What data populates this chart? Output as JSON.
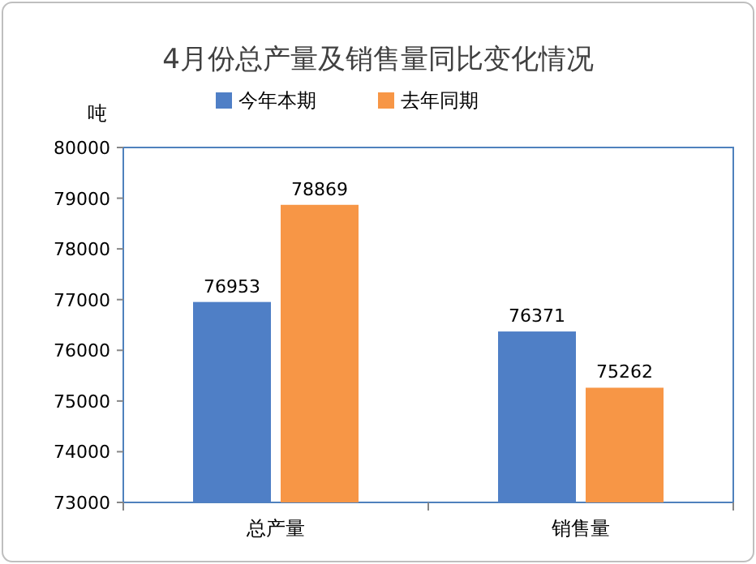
{
  "chart_data": {
    "type": "bar",
    "title": "4月份总产量及销售量同比变化情况",
    "ylabel": "吨",
    "categories": [
      "总产量",
      "销售量"
    ],
    "series": [
      {
        "name": "今年本期",
        "color": "#4f7fc6",
        "values": [
          76953,
          76371
        ]
      },
      {
        "name": "去年同期",
        "color": "#f79646",
        "values": [
          78869,
          75262
        ]
      }
    ],
    "ylim": [
      73000,
      80000
    ],
    "yticks": [
      73000,
      74000,
      75000,
      76000,
      77000,
      78000,
      79000,
      80000
    ],
    "data_labels": true,
    "legend": "top",
    "grid": false
  }
}
